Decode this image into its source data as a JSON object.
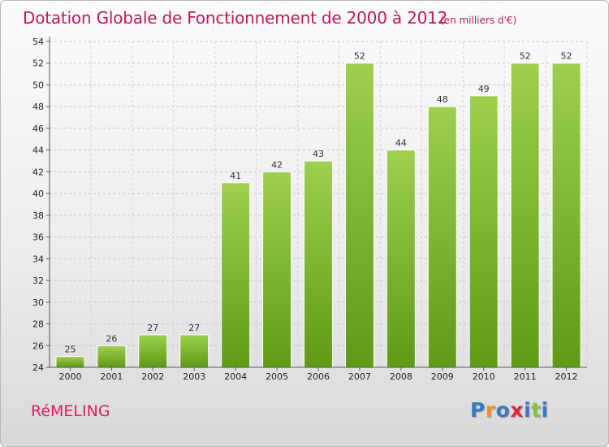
{
  "header": {
    "title": "Dotation Globale de Fonctionnement de 2000 à 2012",
    "subtitle": "(en milliers d'€)"
  },
  "footer": {
    "commune": "RéMELING",
    "logo": [
      "P",
      "r",
      "o",
      "x",
      "i",
      "t",
      "i"
    ]
  },
  "colors": {
    "title": "#c2185b",
    "bar_top": "#9dd04e",
    "bar_bottom": "#5f9a16"
  },
  "chart_data": {
    "type": "bar",
    "title": "Dotation Globale de Fonctionnement de 2000 à 2012",
    "subtitle": "(en milliers d'€)",
    "categories": [
      "2000",
      "2001",
      "2002",
      "2003",
      "2004",
      "2005",
      "2006",
      "2007",
      "2008",
      "2009",
      "2010",
      "2011",
      "2012"
    ],
    "values": [
      25,
      26,
      27,
      27,
      41,
      42,
      43,
      52,
      44,
      48,
      49,
      52,
      52
    ],
    "ylim": [
      24,
      54
    ],
    "yticks": [
      24,
      26,
      28,
      30,
      32,
      34,
      36,
      38,
      40,
      42,
      44,
      46,
      48,
      50,
      52,
      54
    ],
    "grid": "horizontal-dashed",
    "xlabel": "",
    "ylabel": ""
  }
}
